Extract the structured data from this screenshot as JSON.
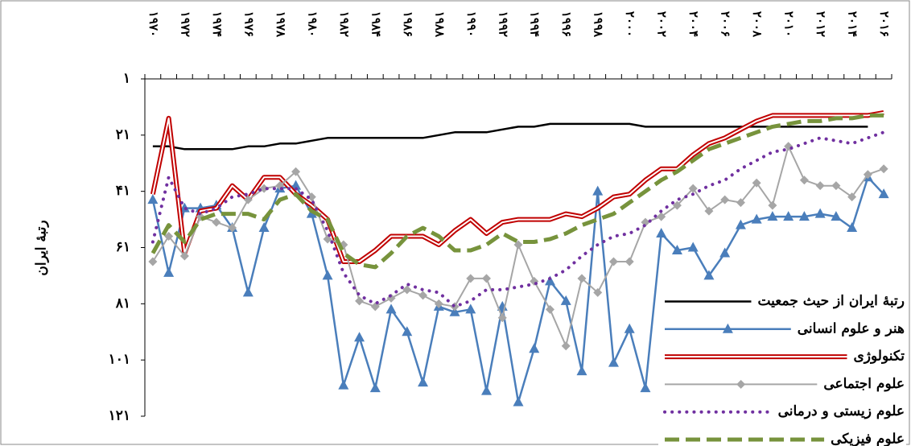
{
  "chart_data": {
    "type": "line",
    "y_label": "رتبهٔ ایران",
    "categories": [
      "۱۹۷۰",
      null,
      "۱۹۷۲",
      null,
      "۱۹۷۴",
      null,
      "۱۹۷۶",
      null,
      "۱۹۷۸",
      null,
      "۱۹۸۰",
      null,
      "۱۹۸۲",
      null,
      "۱۹۸۴",
      null,
      "۱۹۸۶",
      null,
      "۱۹۸۸",
      null,
      "۱۹۹۰",
      null,
      "۱۹۹۲",
      null,
      "۱۹۹۴",
      null,
      "۱۹۹۶",
      null,
      "۱۹۹۸",
      null,
      "۲۰۰۰",
      null,
      "۲۰۰۲",
      null,
      "۲۰۰۴",
      null,
      "۲۰۰۶",
      null,
      "۲۰۰۸",
      null,
      "۲۰۱۰",
      null,
      "۲۰۱۲",
      null,
      "۲۰۱۴",
      null,
      "۲۰۱۶"
    ],
    "ylim": [
      1,
      121
    ],
    "y_inverted": true,
    "yticks": [
      {
        "value": 1,
        "label": "۱"
      },
      {
        "value": 21,
        "label": "۲۱"
      },
      {
        "value": 41,
        "label": "۴۱"
      },
      {
        "value": 61,
        "label": "۶۱"
      },
      {
        "value": 81,
        "label": "۸۱"
      },
      {
        "value": 101,
        "label": "۱۰۱"
      },
      {
        "value": 121,
        "label": "۱۲۱"
      }
    ],
    "x_axis_position": "top",
    "legend": "lower right",
    "series": [
      {
        "name": "رتبهٔ ایران از حیث جمعیت",
        "color": "#000000",
        "width": 2.5,
        "values": [
          25,
          25,
          26,
          26,
          26,
          26,
          25,
          25,
          24,
          24,
          23,
          22,
          22,
          22,
          22,
          22,
          22,
          22,
          21,
          20,
          20,
          20,
          19,
          18,
          18,
          17,
          17,
          17,
          17,
          17,
          17,
          18,
          18,
          18,
          18,
          18,
          18,
          18,
          18,
          18,
          18,
          18,
          18,
          18,
          18,
          18,
          null
        ]
      },
      {
        "name": "هنر و علوم انسانی",
        "color": "#4a7ebb",
        "width": 2.5,
        "marker": "triangle",
        "values": [
          44,
          70,
          47,
          47,
          46,
          54,
          77,
          54,
          40,
          39,
          49,
          71,
          110,
          93,
          111,
          83,
          91,
          109,
          82,
          84,
          83,
          112,
          82,
          116,
          97,
          73,
          80,
          105,
          41,
          102,
          90,
          111,
          56,
          62,
          61,
          71,
          63,
          53,
          51,
          50,
          50,
          50,
          49,
          50,
          54,
          36,
          42
        ]
      },
      {
        "name": "تکنولوژی",
        "color": "#c00000",
        "width": 6,
        "double": true,
        "values": [
          42,
          15,
          63,
          48,
          47,
          39,
          44,
          36,
          36,
          42,
          46,
          51,
          66,
          66,
          62,
          57,
          57,
          57,
          60,
          55,
          51,
          56,
          52,
          51,
          51,
          51,
          49,
          50,
          47,
          43,
          42,
          37,
          33,
          33,
          28,
          24,
          22,
          19,
          16,
          14,
          14,
          14,
          14,
          14,
          14,
          14,
          13
        ]
      },
      {
        "name": "علوم اجتماعی",
        "color": "#a6a6a6",
        "width": 2,
        "marker": "diamond",
        "values": [
          66,
          57,
          64,
          50,
          52,
          54,
          44,
          40,
          39,
          34,
          43,
          58,
          60,
          80,
          82,
          79,
          76,
          78,
          81,
          82,
          72,
          72,
          86,
          60,
          73,
          83,
          96,
          72,
          77,
          66,
          66,
          52,
          50,
          46,
          40,
          48,
          44,
          45,
          38,
          46,
          25,
          37,
          39,
          39,
          43,
          35,
          33
        ]
      },
      {
        "name": "علوم زیستی و درمانی",
        "color": "#7030a0",
        "width": 4,
        "dash": "dotted",
        "values": [
          59,
          36,
          47,
          49,
          47,
          43,
          42,
          40,
          40,
          40,
          44,
          55,
          70,
          78,
          81,
          78,
          74,
          76,
          77,
          82,
          80,
          76,
          76,
          75,
          74,
          72,
          69,
          64,
          60,
          57,
          56,
          53,
          48,
          44,
          42,
          39,
          37,
          33,
          30,
          27,
          26,
          24,
          22,
          23,
          24,
          22,
          20
        ]
      },
      {
        "name": "علوم فیزیکی",
        "color": "#77933c",
        "width": 5,
        "dash": "dashed",
        "values": [
          63,
          53,
          59,
          51,
          49,
          49,
          49,
          51,
          44,
          42,
          48,
          51,
          63,
          67,
          68,
          63,
          57,
          54,
          57,
          62,
          62,
          60,
          56,
          59,
          59,
          58,
          56,
          53,
          51,
          49,
          45,
          41,
          37,
          34,
          30,
          26,
          24,
          22,
          20,
          18,
          17,
          16,
          16,
          15,
          15,
          14,
          14
        ]
      }
    ]
  }
}
